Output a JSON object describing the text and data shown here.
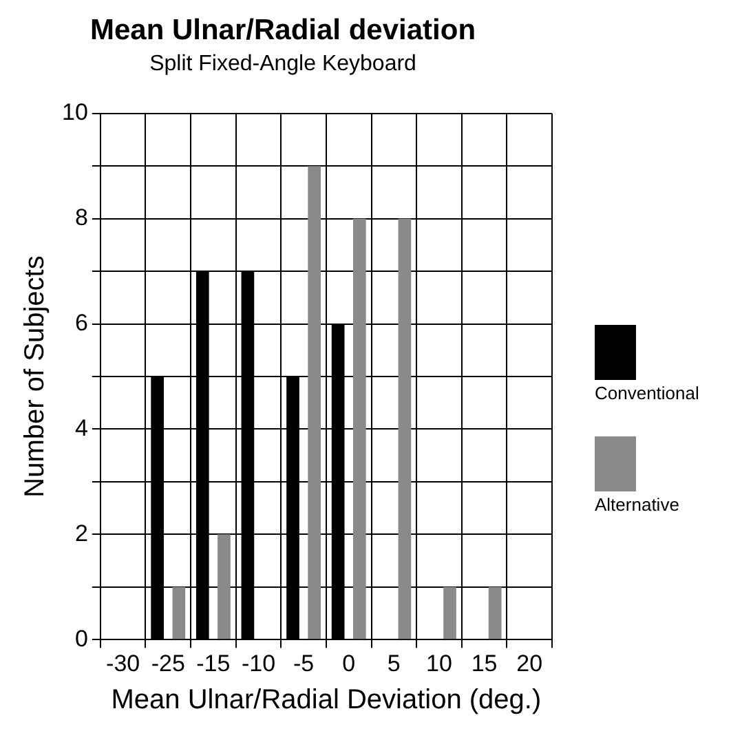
{
  "chart_data": {
    "type": "bar",
    "title": "Mean Ulnar/Radial deviation",
    "subtitle": "Split Fixed-Angle Keyboard",
    "xlabel": "Mean Ulnar/Radial Deviation (deg.)",
    "ylabel": "Number of Subjects",
    "categories": [
      "-30",
      "-25",
      "-15",
      "-10",
      "-5",
      "0",
      "5",
      "10",
      "15",
      "20"
    ],
    "series": [
      {
        "name": "Conventional",
        "color": "#000000",
        "values": [
          0,
          5,
          7,
          7,
          5,
          6,
          0,
          0,
          0,
          0
        ]
      },
      {
        "name": "Alternative",
        "color": "#8a8a8a",
        "values": [
          0,
          1,
          2,
          0,
          9,
          8,
          8,
          1,
          1,
          0
        ]
      }
    ],
    "ylim": [
      0,
      10
    ],
    "yticks": [
      0,
      {
        "value": 1,
        "label": null
      },
      2,
      {
        "value": 3,
        "label": null
      },
      4,
      {
        "value": 5,
        "label": null
      },
      6,
      {
        "value": 7,
        "label": null
      },
      8,
      {
        "value": 9,
        "label": null
      },
      10
    ],
    "grid": true,
    "legend": "right"
  }
}
